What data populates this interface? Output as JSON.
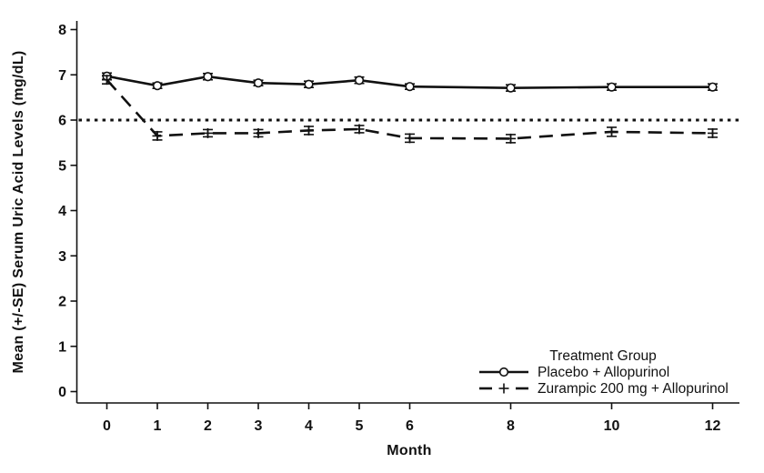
{
  "chart_data": {
    "type": "line",
    "title": "",
    "xlabel": "Month",
    "ylabel": "Mean (+/-SE) Serum Uric Acid Levels (mg/dL)",
    "x": [
      0,
      1,
      2,
      3,
      4,
      5,
      6,
      8,
      10,
      12
    ],
    "x_ticks": [
      "0",
      "1",
      "2",
      "3",
      "4",
      "5",
      "6",
      "8",
      "10",
      "12"
    ],
    "y_ticks": [
      "0",
      "1",
      "2",
      "3",
      "4",
      "5",
      "6",
      "7",
      "8"
    ],
    "xlim": [
      -0.6,
      12.55
    ],
    "ylim": [
      0,
      8
    ],
    "grid": false,
    "reference_line": {
      "y": 6.0,
      "style": "dotted"
    },
    "series": [
      {
        "name": "Placebo + Allopurinol",
        "line": "solid",
        "marker": "circle",
        "values": [
          6.97,
          6.76,
          6.96,
          6.82,
          6.79,
          6.88,
          6.74,
          6.71,
          6.73,
          6.73
        ],
        "se": [
          0.07,
          0.06,
          0.07,
          0.06,
          0.07,
          0.07,
          0.06,
          0.07,
          0.07,
          0.07
        ]
      },
      {
        "name": "Zurampic 200 mg + Allopurinol",
        "line": "dashed",
        "marker": "plus",
        "values": [
          6.89,
          5.65,
          5.71,
          5.71,
          5.77,
          5.8,
          5.6,
          5.59,
          5.74,
          5.71
        ],
        "se": [
          0.09,
          0.09,
          0.08,
          0.08,
          0.09,
          0.08,
          0.09,
          0.09,
          0.1,
          0.09
        ]
      }
    ],
    "legend": {
      "title": "Treatment Group",
      "position": "inside-bottom-right"
    },
    "colors": {
      "foreground": "#111111",
      "background": "#ffffff"
    }
  }
}
